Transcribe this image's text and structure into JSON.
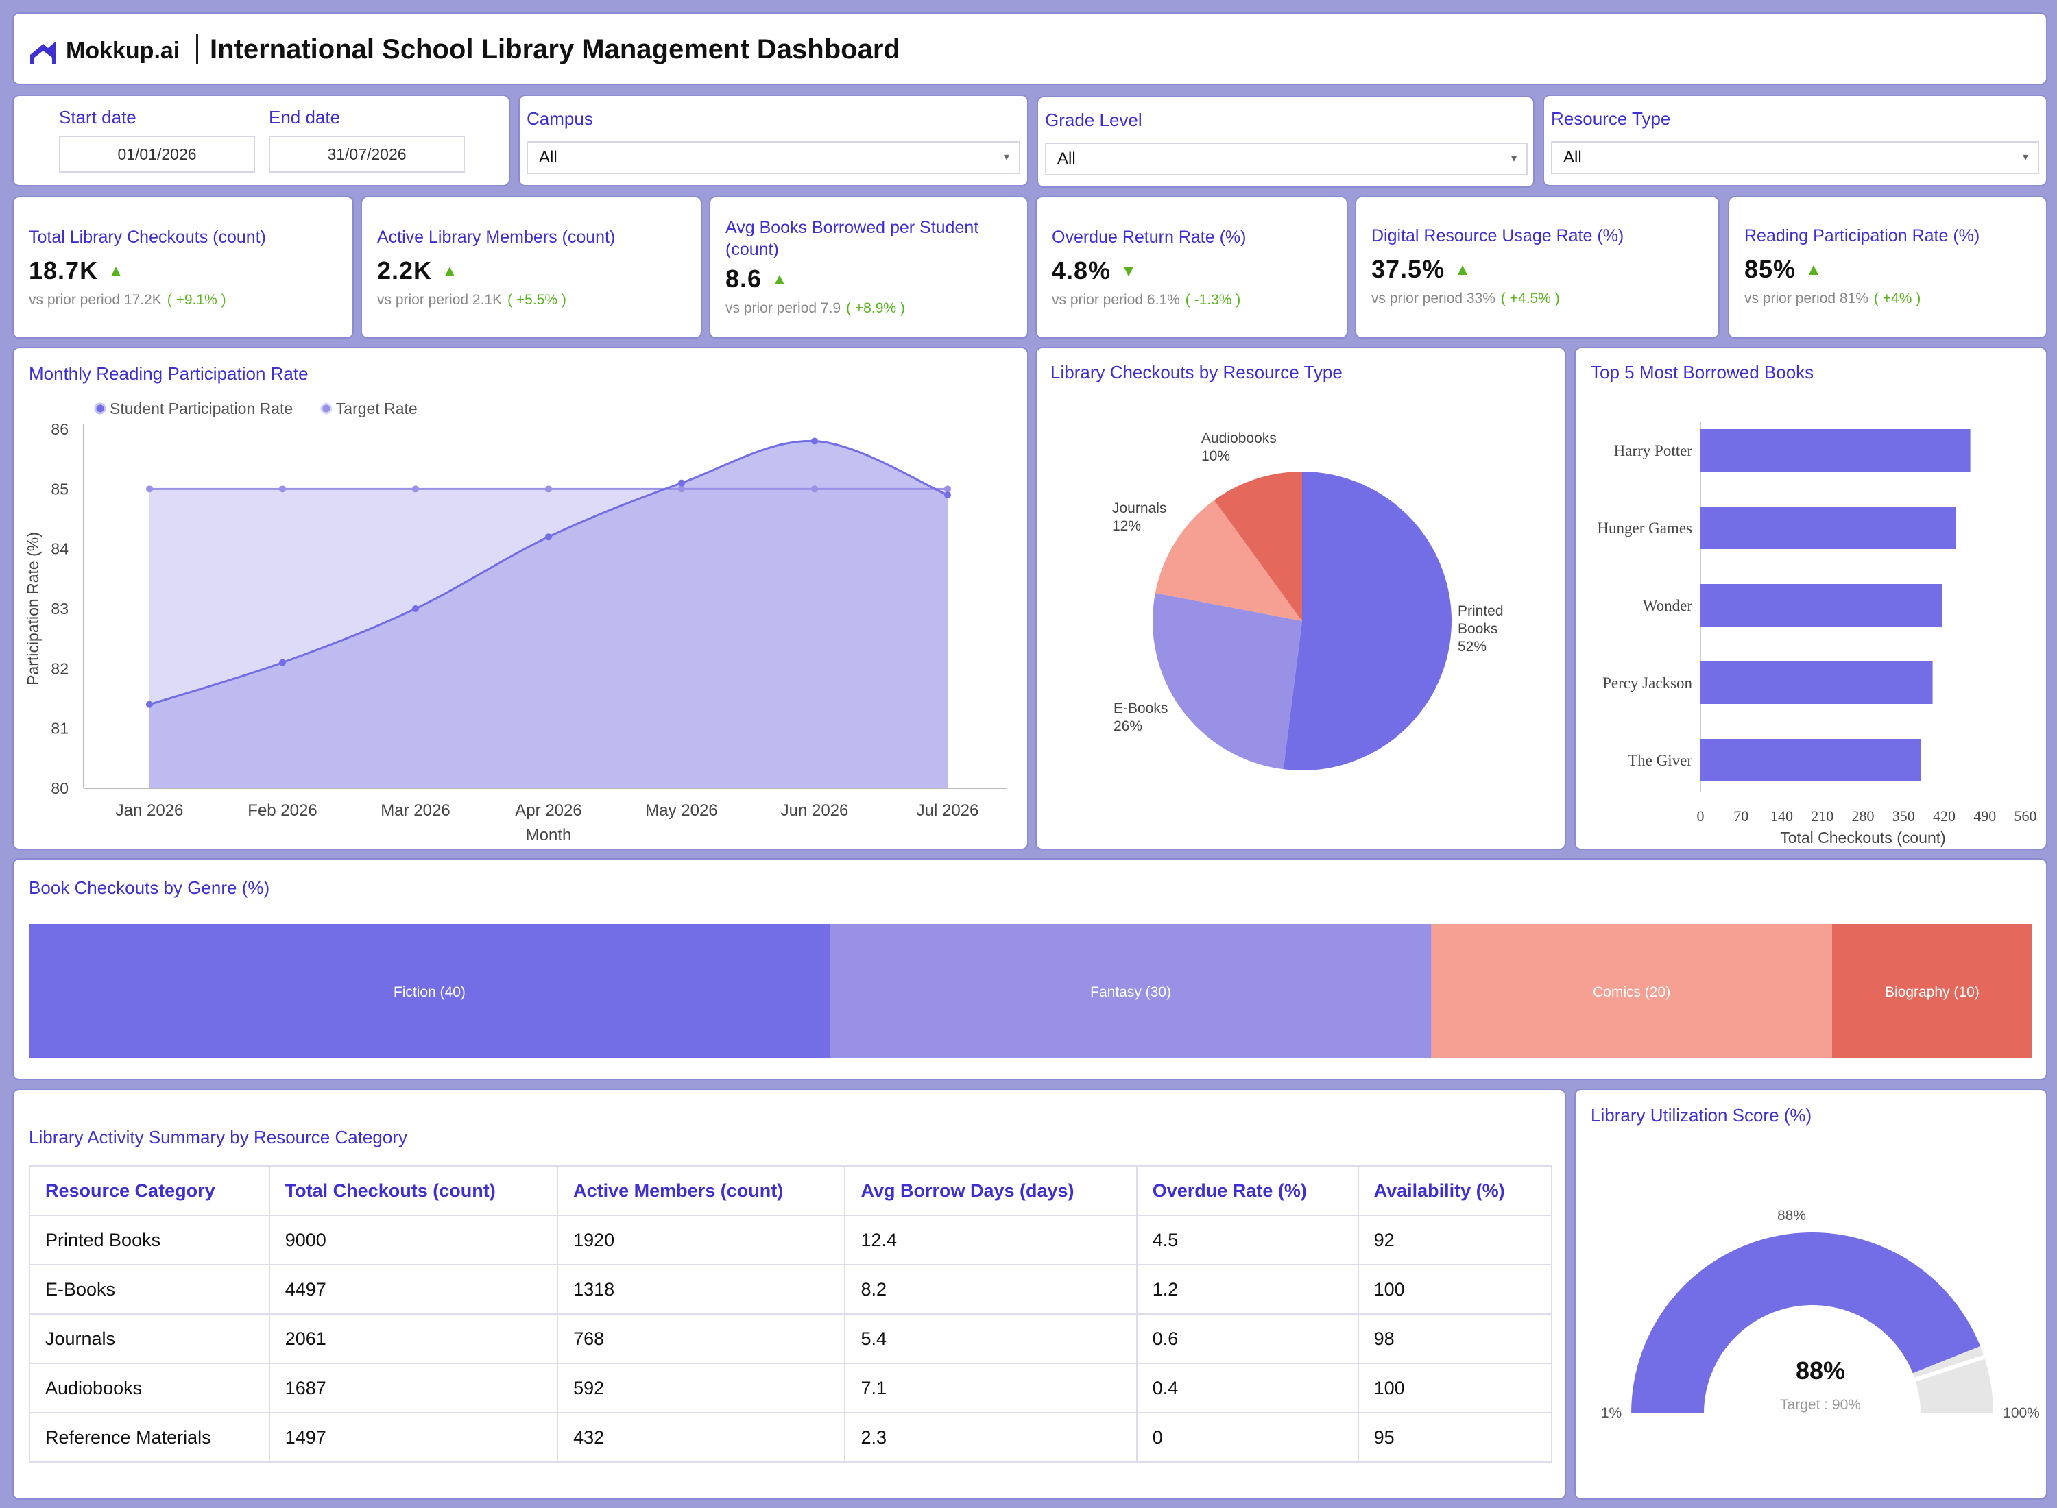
{
  "header": {
    "logo_text": "Mokkup.ai",
    "title": "International School Library Management Dashboard"
  },
  "filters": {
    "start_date_label": "Start date",
    "end_date_label": "End date",
    "start_date": "01/01/2026",
    "end_date": "31/07/2026",
    "campus_label": "Campus",
    "campus_value": "All",
    "grade_label": "Grade Level",
    "grade_value": "All",
    "resource_label": "Resource Type",
    "resource_value": "All"
  },
  "kpis": [
    {
      "label": "Total Library Checkouts (count)",
      "value": "18.7K",
      "trend": "up",
      "prior": "vs prior period 17.2K",
      "delta": "( +9.1% )"
    },
    {
      "label": "Active Library Members (count)",
      "value": "2.2K",
      "trend": "up",
      "prior": "vs prior period 2.1K",
      "delta": "( +5.5% )"
    },
    {
      "label": "Avg Books Borrowed per Student (count)",
      "value": "8.6",
      "trend": "up",
      "prior": "vs prior period 7.9",
      "delta": "( +8.9% )"
    },
    {
      "label": "Overdue Return Rate (%)",
      "value": "4.8%",
      "trend": "down",
      "prior": "vs prior period 6.1%",
      "delta": "( -1.3% )"
    },
    {
      "label": "Digital Resource Usage Rate (%)",
      "value": "37.5%",
      "trend": "up",
      "prior": "vs prior period 33%",
      "delta": "( +4.5% )"
    },
    {
      "label": "Reading Participation Rate (%)",
      "value": "85%",
      "trend": "up",
      "prior": "vs prior period 81%",
      "delta": "( +4% )"
    }
  ],
  "colors": {
    "primary": "#736de6",
    "secondary": "#9891e6",
    "salmon": "#f5a092",
    "coral": "#e4695c",
    "title_blue": "#3d2fd0",
    "positive": "#5ab31e"
  },
  "chart_data": [
    {
      "id": "participation",
      "type": "area",
      "title": "Monthly Reading Participation Rate",
      "xlabel": "Month",
      "ylabel": "Participation Rate (%)",
      "ylim": [
        80,
        86
      ],
      "yticks": [
        80,
        81,
        82,
        83,
        84,
        85,
        86
      ],
      "x": [
        "Jan 2026",
        "Feb 2026",
        "Mar 2026",
        "Apr 2026",
        "May 2026",
        "Jun 2026",
        "Jul 2026"
      ],
      "legend_position": "top-left",
      "series": [
        {
          "name": "Student Participation Rate",
          "values": [
            81.4,
            82.1,
            83.0,
            84.2,
            85.1,
            85.8,
            84.9
          ]
        },
        {
          "name": "Target Rate",
          "values": [
            85,
            85,
            85,
            85,
            85,
            85,
            85
          ]
        }
      ]
    },
    {
      "id": "resource_pie",
      "type": "pie",
      "title": "Library Checkouts by Resource Type",
      "slices": [
        {
          "label": "Printed Books",
          "lines": [
            "Printed",
            "Books",
            "52%"
          ],
          "value": 52
        },
        {
          "label": "E-Books",
          "lines": [
            "E-Books",
            "26%"
          ],
          "value": 26
        },
        {
          "label": "Journals",
          "lines": [
            "Journals",
            "12%"
          ],
          "value": 12
        },
        {
          "label": "Audiobooks",
          "lines": [
            "Audiobooks",
            "10%"
          ],
          "value": 10
        }
      ]
    },
    {
      "id": "top_books",
      "type": "bar",
      "title": "Top 5 Most Borrowed Books",
      "xlabel": "Total Checkouts (count)",
      "xlim": [
        0,
        560
      ],
      "xticks": [
        0,
        70,
        140,
        210,
        280,
        350,
        420,
        490,
        560
      ],
      "categories": [
        "Harry Potter",
        "Hunger Games",
        "Wonder",
        "Percy Jackson",
        "The Giver"
      ],
      "values": [
        465,
        440,
        417,
        400,
        380
      ]
    },
    {
      "id": "genre",
      "type": "bar",
      "title": "Book Checkouts by Genre (%)",
      "segments": [
        {
          "label": "Fiction (40)",
          "value": 40
        },
        {
          "label": "Fantasy (30)",
          "value": 30
        },
        {
          "label": "Comics (20)",
          "value": 20
        },
        {
          "label": "Biography (10)",
          "value": 10
        }
      ]
    },
    {
      "id": "utilization",
      "type": "gauge",
      "title": "Library Utilization Score (%)",
      "value": 88,
      "value_label": "88%",
      "top_label": "88%",
      "min_label": "1%",
      "max_label": "100%",
      "target_label": "Target : 90%",
      "min": 1,
      "max": 100,
      "target": 90
    }
  ],
  "table": {
    "title": "Library Activity Summary by Resource Category",
    "columns": [
      "Resource Category",
      "Total Checkouts (count)",
      "Active Members (count)",
      "Avg Borrow Days (days)",
      "Overdue Rate (%)",
      "Availability (%)"
    ],
    "rows": [
      [
        "Printed Books",
        "9000",
        "1920",
        "12.4",
        "4.5",
        "92"
      ],
      [
        "E-Books",
        "4497",
        "1318",
        "8.2",
        "1.2",
        "100"
      ],
      [
        "Journals",
        "2061",
        "768",
        "5.4",
        "0.6",
        "98"
      ],
      [
        "Audiobooks",
        "1687",
        "592",
        "7.1",
        "0.4",
        "100"
      ],
      [
        "Reference Materials",
        "1497",
        "432",
        "2.3",
        "0",
        "95"
      ]
    ]
  }
}
